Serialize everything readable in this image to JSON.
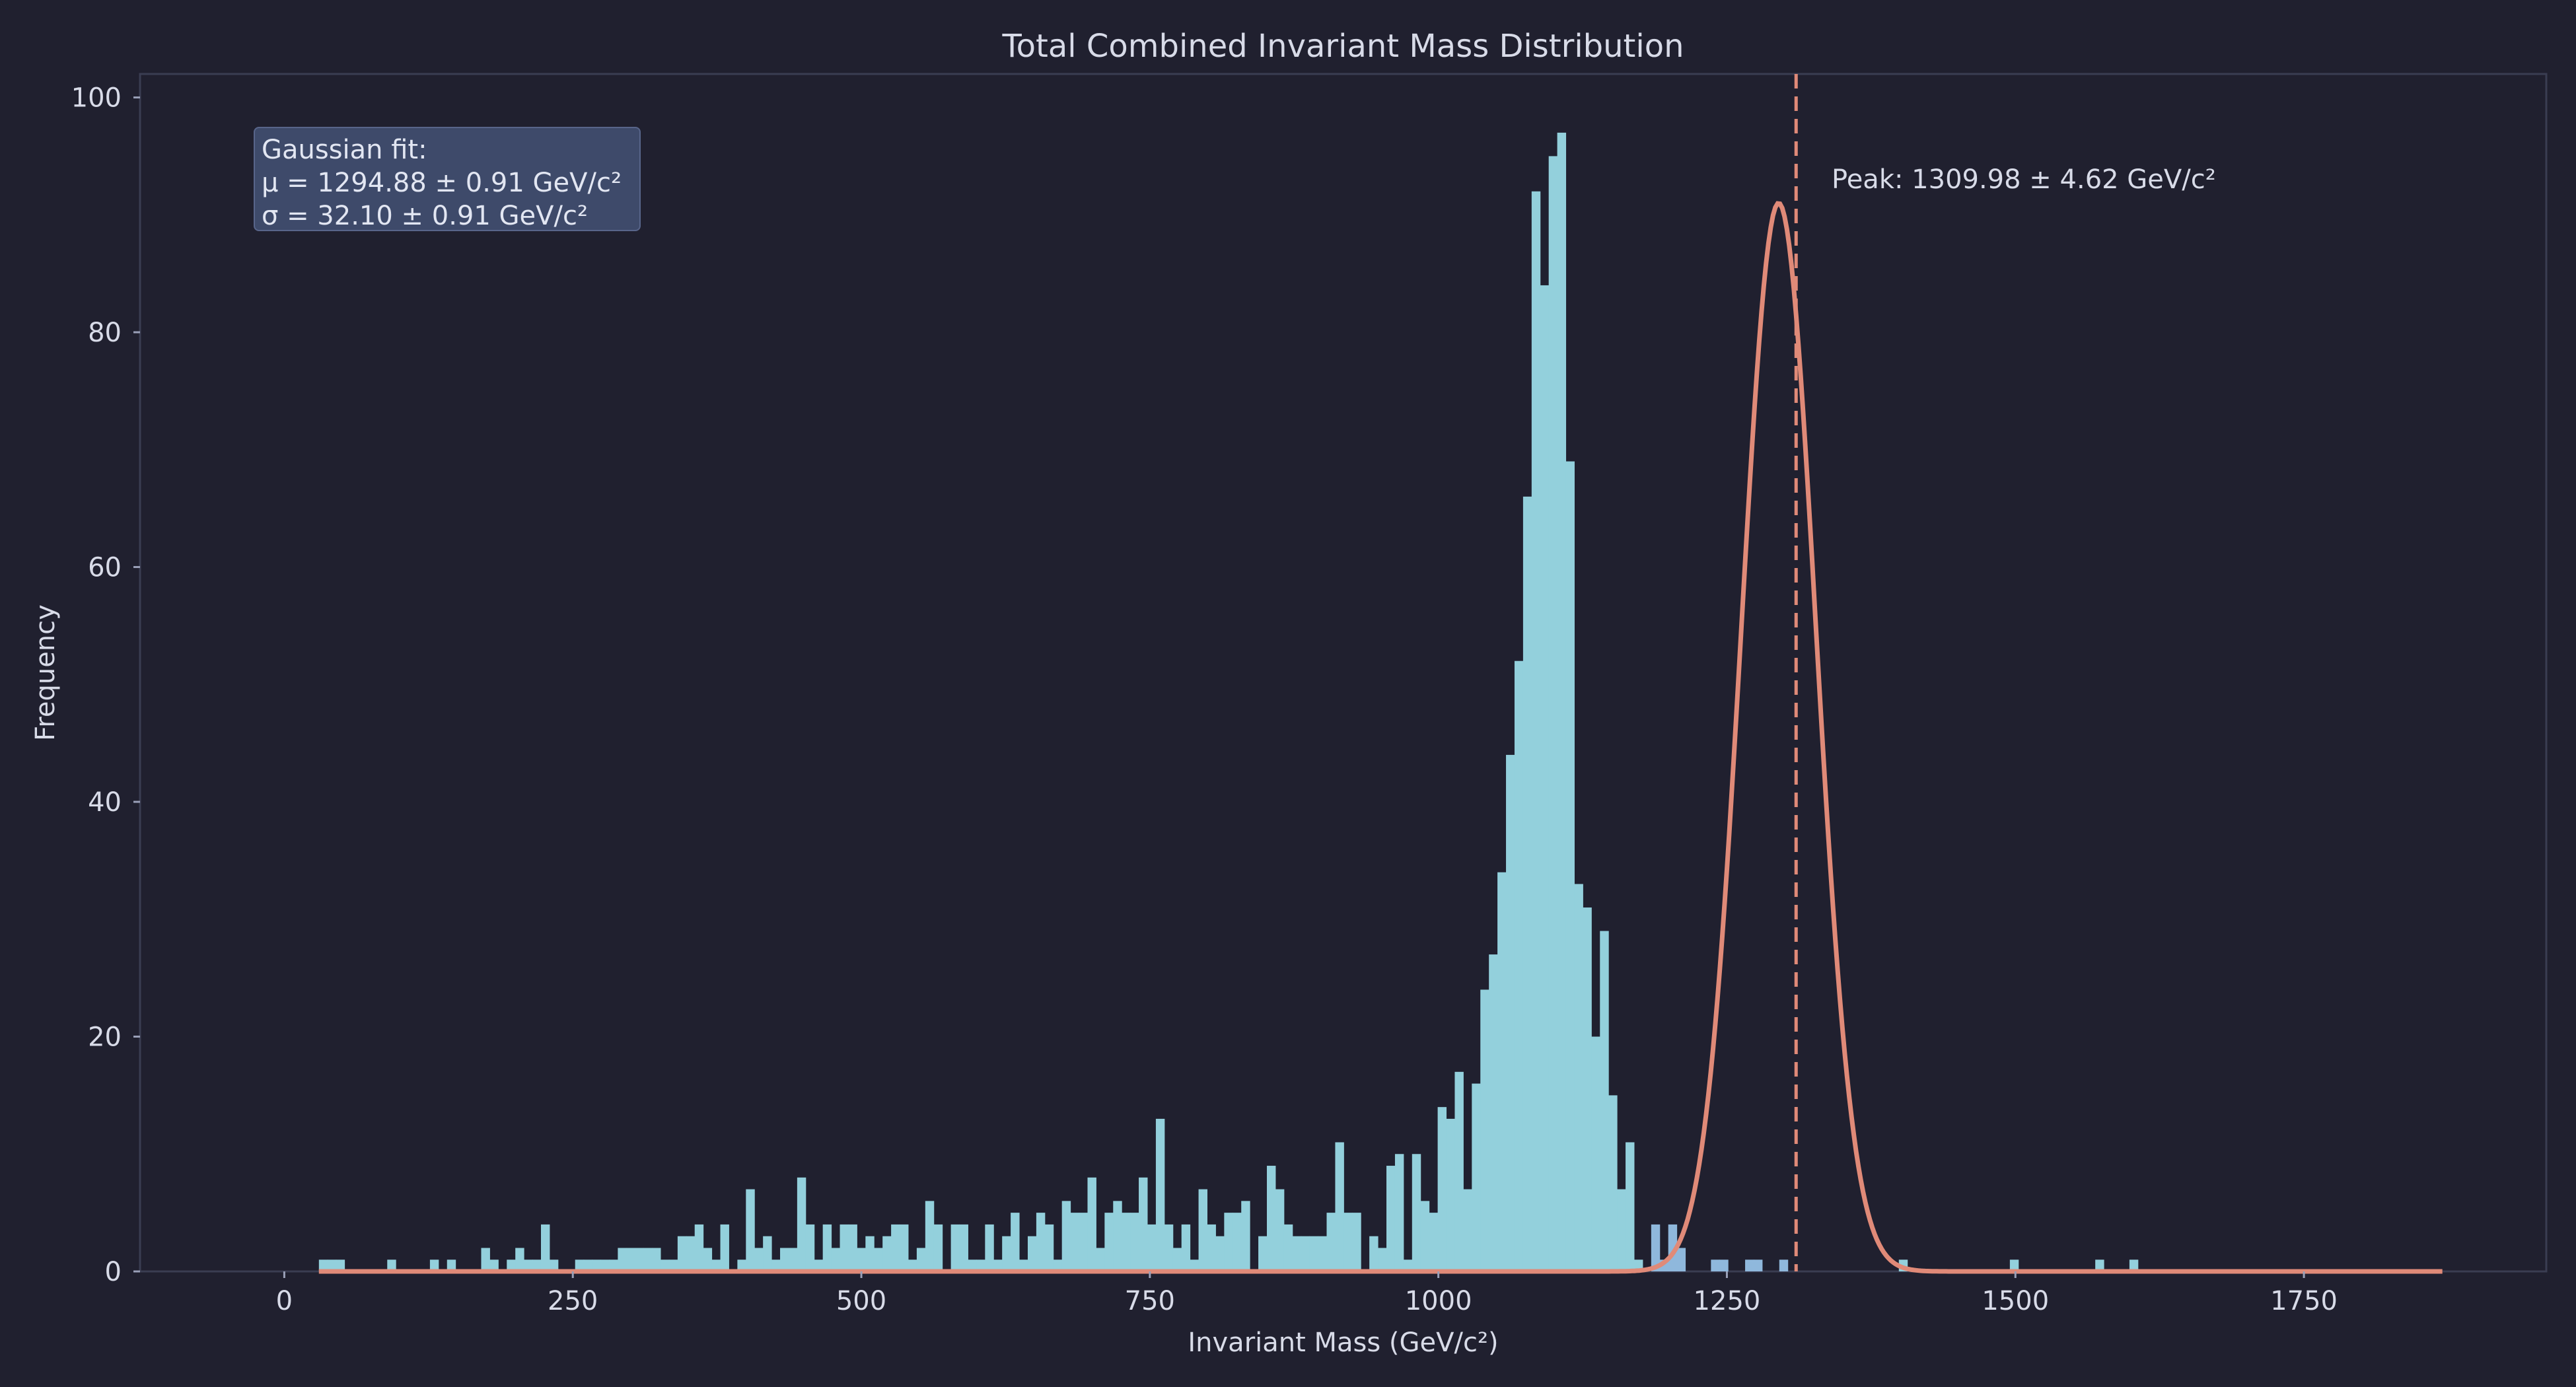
{
  "chart_data": {
    "type": "bar",
    "title": "Total Combined Invariant Mass Distribution",
    "xlabel": "Invariant Mass (GeV/c²)",
    "ylabel": "Frequency",
    "xlim": [
      -125,
      1960
    ],
    "ylim": [
      0,
      102
    ],
    "xticks": [
      0,
      250,
      500,
      750,
      1000,
      1250,
      1500,
      1750
    ],
    "yticks": [
      0,
      20,
      40,
      60,
      80,
      100
    ],
    "grid": false,
    "bin_width": 7.4,
    "bin_start": 30,
    "counts": [
      1,
      1,
      1,
      0,
      0,
      0,
      0,
      0,
      1,
      0,
      0,
      0,
      0,
      1,
      0,
      1,
      0,
      0,
      0,
      2,
      1,
      0,
      1,
      2,
      1,
      1,
      4,
      1,
      0,
      0,
      1,
      1,
      1,
      1,
      1,
      2,
      2,
      2,
      2,
      2,
      1,
      1,
      3,
      3,
      4,
      2,
      1,
      4,
      0,
      1,
      7,
      2,
      3,
      1,
      2,
      2,
      8,
      4,
      1,
      4,
      2,
      4,
      4,
      2,
      3,
      2,
      3,
      4,
      4,
      1,
      2,
      6,
      4,
      0,
      4,
      4,
      1,
      1,
      4,
      1,
      3,
      5,
      1,
      3,
      5,
      4,
      1,
      6,
      5,
      5,
      8,
      2,
      5,
      6,
      5,
      5,
      8,
      4,
      13,
      4,
      2,
      4,
      1,
      7,
      4,
      3,
      5,
      5,
      6,
      0,
      3,
      9,
      7,
      4,
      3,
      3,
      3,
      3,
      5,
      11,
      5,
      5,
      0,
      3,
      2,
      9,
      10,
      1,
      10,
      6,
      5,
      14,
      13,
      17,
      7,
      16,
      24,
      27,
      34,
      44,
      52,
      66,
      92,
      84,
      95,
      97,
      69,
      33,
      31,
      20,
      29,
      15,
      7,
      11,
      1,
      0,
      4,
      1,
      4,
      2,
      0,
      0,
      0,
      1,
      1,
      0,
      0,
      1,
      1,
      0,
      0,
      1,
      0,
      0,
      0,
      0,
      0,
      0,
      0,
      0,
      0,
      0,
      0,
      0,
      0,
      1,
      0,
      0,
      0,
      0,
      0,
      0,
      0,
      0,
      0,
      0,
      0,
      0,
      1,
      0,
      0,
      0,
      0,
      0,
      0,
      0,
      0,
      0,
      1,
      0,
      0,
      0,
      1
    ],
    "fit": {
      "type": "gaussian",
      "mu": 1294.88,
      "sigma": 32.1,
      "amplitude": 91,
      "color": "#e08a78"
    },
    "peak_line": {
      "x": 1309.98,
      "color": "#e08a78"
    },
    "bar_color": "#93d0dc",
    "bar_color_highlight": "#8fb8dc",
    "background": "#20202f",
    "annotations": {
      "fit_box": {
        "line1": "Gaussian fit:",
        "line2": "μ = 1294.88 ± 0.91 GeV/c²",
        "line3": "σ = 32.10 ± 0.91 GeV/c²"
      },
      "peak_label": "Peak: 1309.98 ± 4.62 GeV/c²"
    }
  }
}
